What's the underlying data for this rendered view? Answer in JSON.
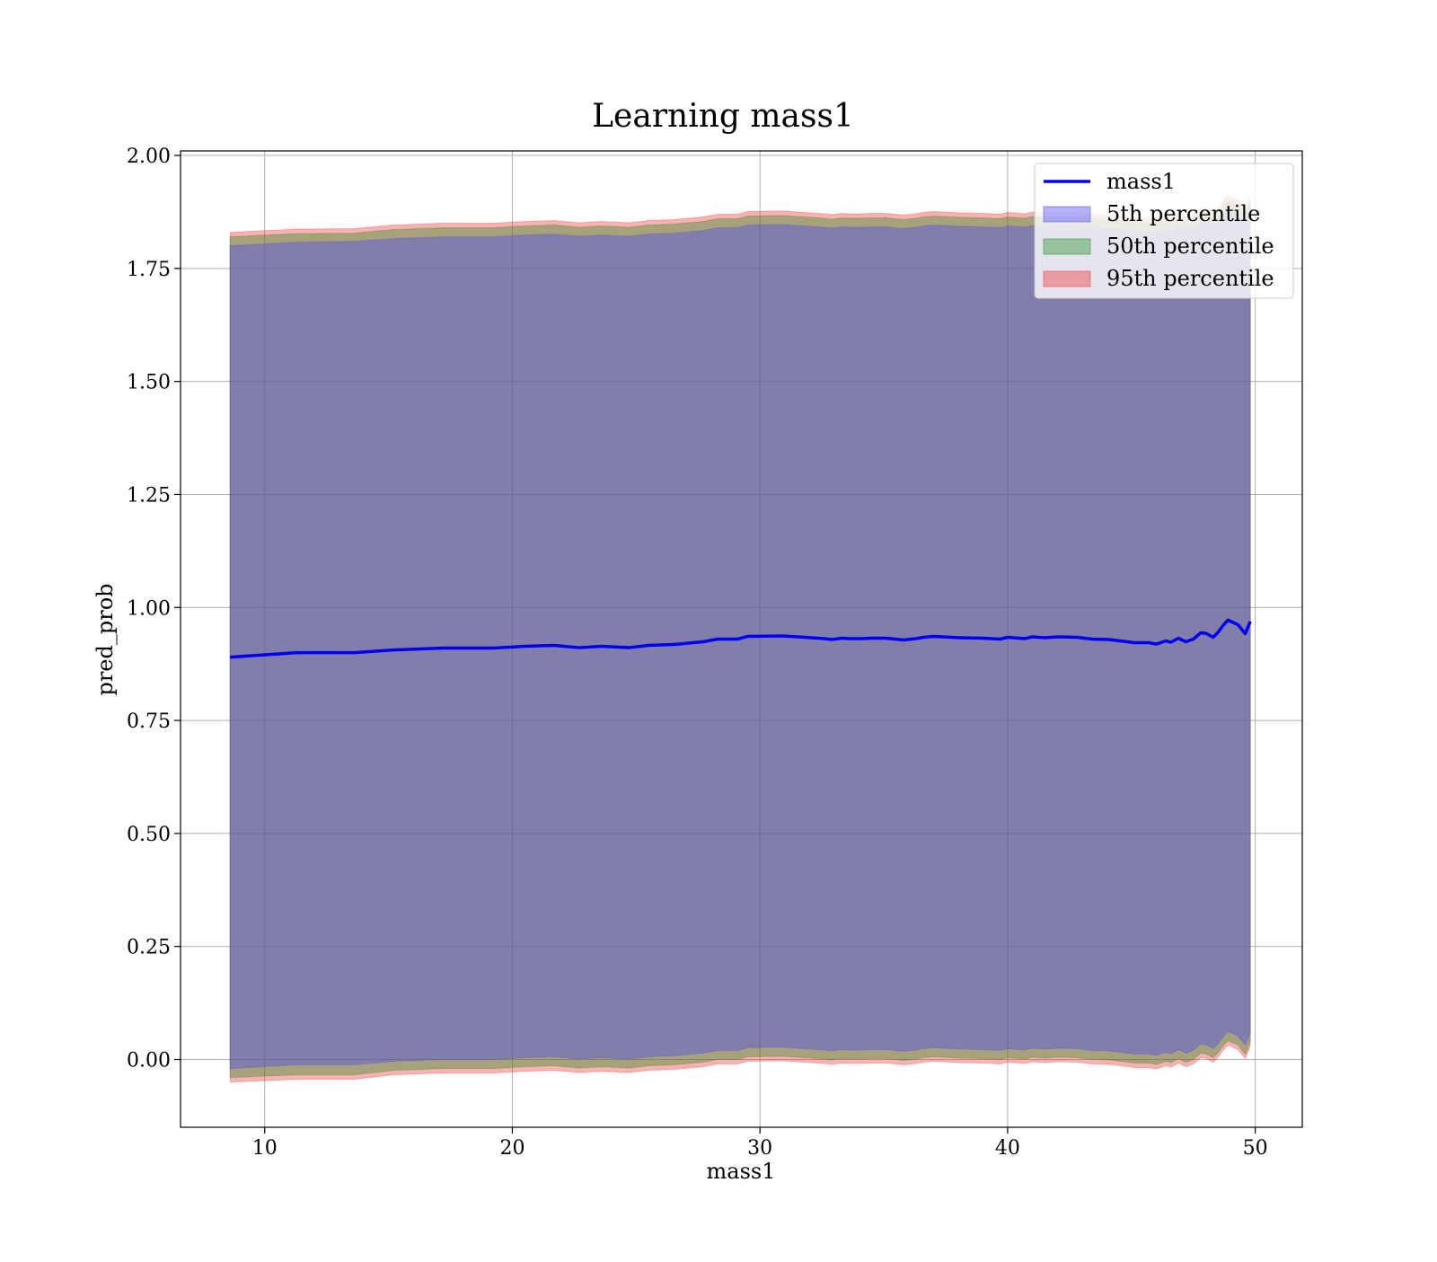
{
  "chart_data": {
    "type": "line",
    "title": "Learning mass1",
    "xlabel": "mass1",
    "ylabel": "pred_prob",
    "xlim": [
      6.6,
      51.9
    ],
    "ylim": [
      -0.15,
      2.01
    ],
    "xticks": [
      10,
      20,
      30,
      40,
      50
    ],
    "yticks": [
      0.0,
      0.25,
      0.5,
      0.75,
      1.0,
      1.25,
      1.5,
      1.75,
      2.0
    ],
    "xtick_labels": [
      "10",
      "20",
      "30",
      "40",
      "50"
    ],
    "ytick_labels": [
      "0.00",
      "0.25",
      "0.50",
      "0.75",
      "1.00",
      "1.25",
      "1.50",
      "1.75",
      "2.00"
    ],
    "grid": true,
    "legend_position": "top-right",
    "x": [
      8.6,
      11.3,
      13.6,
      15.2,
      17.2,
      19.2,
      20.5,
      21.7,
      22.7,
      23.6,
      24.7,
      25.5,
      26.5,
      27.7,
      28.3,
      29.1,
      29.5,
      30.9,
      31.8,
      32.6,
      32.9,
      33.3,
      33.6,
      34.1,
      34.5,
      35.1,
      35.8,
      36.3,
      36.6,
      37.0,
      38.1,
      39.0,
      39.7,
      40.0,
      40.7,
      41.0,
      41.5,
      42.0,
      42.8,
      43.4,
      44.1,
      44.7,
      45.1,
      45.7,
      46.0,
      46.4,
      46.6,
      46.9,
      47.2,
      47.5,
      47.8,
      48.0,
      48.3,
      48.5,
      48.7,
      48.9,
      49.1,
      49.3,
      49.6,
      49.8
    ],
    "series": [
      {
        "name": "mass1",
        "color": "#0000ee",
        "values": [
          0.89,
          0.9,
          0.9,
          0.906,
          0.91,
          0.91,
          0.914,
          0.916,
          0.911,
          0.914,
          0.911,
          0.916,
          0.918,
          0.924,
          0.93,
          0.93,
          0.936,
          0.937,
          0.934,
          0.931,
          0.929,
          0.932,
          0.931,
          0.931,
          0.932,
          0.932,
          0.928,
          0.931,
          0.934,
          0.936,
          0.933,
          0.932,
          0.93,
          0.934,
          0.931,
          0.935,
          0.933,
          0.935,
          0.934,
          0.93,
          0.929,
          0.925,
          0.922,
          0.922,
          0.919,
          0.926,
          0.923,
          0.932,
          0.924,
          0.93,
          0.944,
          0.943,
          0.934,
          0.945,
          0.96,
          0.972,
          0.967,
          0.962,
          0.942,
          0.969
        ]
      }
    ],
    "bands": [
      {
        "name": "5th percentile",
        "color": "#4444ff",
        "lower": [
          -0.02,
          -0.012,
          -0.012,
          -0.004,
          0.0,
          0.0,
          0.004,
          0.006,
          0.001,
          0.004,
          0.001,
          0.006,
          0.008,
          0.014,
          0.02,
          0.02,
          0.026,
          0.027,
          0.024,
          0.021,
          0.019,
          0.022,
          0.021,
          0.021,
          0.022,
          0.022,
          0.018,
          0.021,
          0.024,
          0.026,
          0.023,
          0.022,
          0.02,
          0.024,
          0.021,
          0.025,
          0.023,
          0.025,
          0.024,
          0.02,
          0.019,
          0.015,
          0.012,
          0.012,
          0.009,
          0.016,
          0.013,
          0.022,
          0.014,
          0.02,
          0.034,
          0.033,
          0.024,
          0.035,
          0.05,
          0.062,
          0.057,
          0.052,
          0.032,
          0.059
        ],
        "upper": [
          1.8,
          1.808,
          1.81,
          1.816,
          1.82,
          1.82,
          1.824,
          1.826,
          1.821,
          1.824,
          1.821,
          1.826,
          1.828,
          1.834,
          1.84,
          1.84,
          1.846,
          1.847,
          1.844,
          1.841,
          1.839,
          1.842,
          1.841,
          1.841,
          1.842,
          1.842,
          1.838,
          1.841,
          1.844,
          1.846,
          1.843,
          1.842,
          1.84,
          1.844,
          1.841,
          1.845,
          1.843,
          1.845,
          1.844,
          1.84,
          1.839,
          1.835,
          1.832,
          1.832,
          1.829,
          1.836,
          1.833,
          1.842,
          1.834,
          1.84,
          1.854,
          1.853,
          1.844,
          1.855,
          1.87,
          1.882,
          1.877,
          1.872,
          1.852,
          1.879
        ]
      },
      {
        "name": "50th percentile",
        "color": "#228b22",
        "lower": [
          -0.04,
          -0.034,
          -0.034,
          -0.024,
          -0.02,
          -0.02,
          -0.016,
          -0.014,
          -0.019,
          -0.016,
          -0.019,
          -0.014,
          -0.012,
          -0.006,
          0.0,
          0.0,
          0.006,
          0.007,
          0.004,
          0.001,
          -0.001,
          0.002,
          0.001,
          0.001,
          0.002,
          0.002,
          -0.002,
          0.001,
          0.004,
          0.006,
          0.003,
          0.002,
          0.0,
          0.004,
          0.001,
          0.005,
          0.003,
          0.005,
          0.004,
          0.0,
          -0.001,
          -0.005,
          -0.008,
          -0.008,
          -0.011,
          -0.004,
          -0.007,
          0.002,
          -0.006,
          0.0,
          0.014,
          0.013,
          0.004,
          0.015,
          0.03,
          0.042,
          0.037,
          0.032,
          0.012,
          0.039
        ],
        "upper": [
          1.82,
          1.827,
          1.828,
          1.836,
          1.84,
          1.84,
          1.844,
          1.846,
          1.841,
          1.844,
          1.841,
          1.846,
          1.848,
          1.854,
          1.86,
          1.86,
          1.866,
          1.867,
          1.864,
          1.861,
          1.859,
          1.862,
          1.861,
          1.861,
          1.862,
          1.862,
          1.858,
          1.861,
          1.864,
          1.866,
          1.863,
          1.862,
          1.86,
          1.864,
          1.861,
          1.865,
          1.863,
          1.865,
          1.864,
          1.86,
          1.859,
          1.855,
          1.852,
          1.852,
          1.849,
          1.856,
          1.853,
          1.862,
          1.854,
          1.86,
          1.874,
          1.873,
          1.864,
          1.875,
          1.89,
          1.902,
          1.897,
          1.892,
          1.872,
          1.899
        ]
      },
      {
        "name": "95th percentile",
        "color": "#ee3333",
        "lower": [
          -0.05,
          -0.044,
          -0.044,
          -0.034,
          -0.03,
          -0.03,
          -0.026,
          -0.024,
          -0.029,
          -0.026,
          -0.029,
          -0.024,
          -0.022,
          -0.016,
          -0.01,
          -0.01,
          -0.004,
          -0.003,
          -0.006,
          -0.009,
          -0.011,
          -0.008,
          -0.009,
          -0.009,
          -0.008,
          -0.008,
          -0.012,
          -0.009,
          -0.006,
          -0.004,
          -0.007,
          -0.008,
          -0.01,
          -0.006,
          -0.009,
          -0.005,
          -0.007,
          -0.005,
          -0.006,
          -0.01,
          -0.011,
          -0.015,
          -0.018,
          -0.018,
          -0.021,
          -0.014,
          -0.017,
          -0.008,
          -0.016,
          -0.01,
          0.004,
          0.003,
          -0.006,
          0.005,
          0.02,
          0.032,
          0.027,
          0.022,
          0.002,
          0.029
        ],
        "upper": [
          1.83,
          1.837,
          1.838,
          1.846,
          1.85,
          1.85,
          1.854,
          1.856,
          1.851,
          1.854,
          1.851,
          1.856,
          1.858,
          1.864,
          1.87,
          1.87,
          1.876,
          1.877,
          1.874,
          1.871,
          1.869,
          1.872,
          1.871,
          1.871,
          1.872,
          1.872,
          1.868,
          1.871,
          1.874,
          1.876,
          1.873,
          1.872,
          1.87,
          1.874,
          1.871,
          1.875,
          1.873,
          1.875,
          1.874,
          1.87,
          1.869,
          1.865,
          1.862,
          1.862,
          1.859,
          1.866,
          1.863,
          1.872,
          1.864,
          1.87,
          1.884,
          1.883,
          1.874,
          1.885,
          1.9,
          1.912,
          1.907,
          1.902,
          1.882,
          1.909
        ]
      }
    ]
  }
}
